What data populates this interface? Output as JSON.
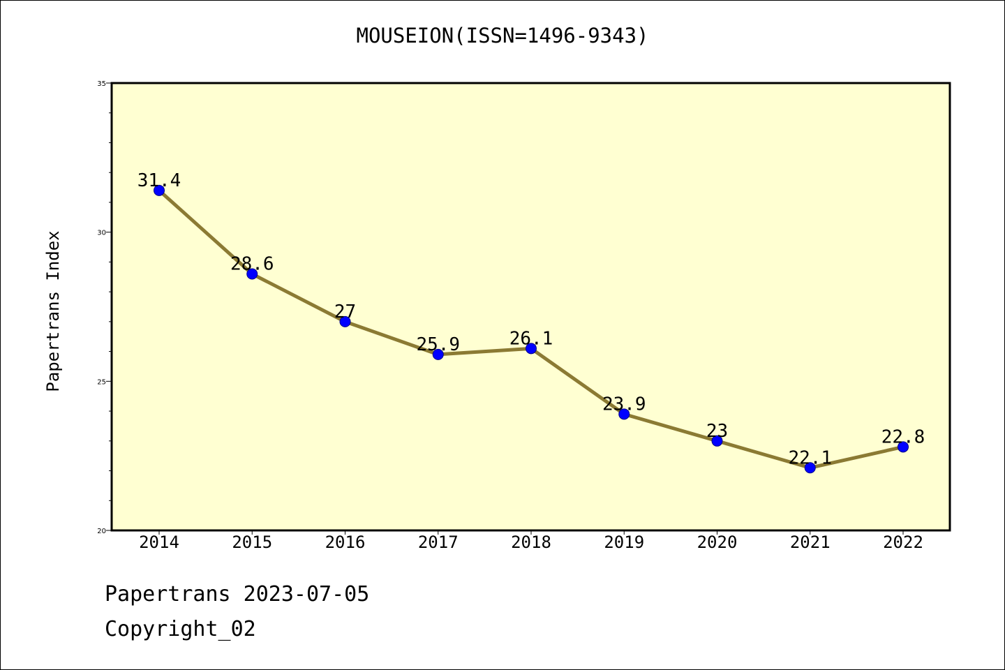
{
  "chart_data": {
    "type": "line",
    "title": "MOUSEION(ISSN=1496-9343)",
    "xlabel": "",
    "ylabel": "Papertrans Index",
    "categories": [
      "2014",
      "2015",
      "2016",
      "2017",
      "2018",
      "2019",
      "2020",
      "2021",
      "2022"
    ],
    "series": [
      {
        "values": [
          31.4,
          28.6,
          27,
          25.9,
          26.1,
          23.9,
          23,
          22.1,
          22.8
        ],
        "labels": [
          "31.4",
          "28.6",
          "27",
          "25.9",
          "26.1",
          "23.9",
          "23",
          "22.1",
          "22.8"
        ],
        "line_color": "#8b7a33",
        "marker_color": "#0000ff"
      }
    ],
    "ylim": [
      20,
      35
    ],
    "yticks": [
      "20",
      "25",
      "30",
      "35"
    ],
    "plot_background": "#ffffd2",
    "grid": false,
    "legend": "none"
  },
  "footer": {
    "date_line": "Papertrans 2023-07-05",
    "copyright": "Copyright_02"
  }
}
